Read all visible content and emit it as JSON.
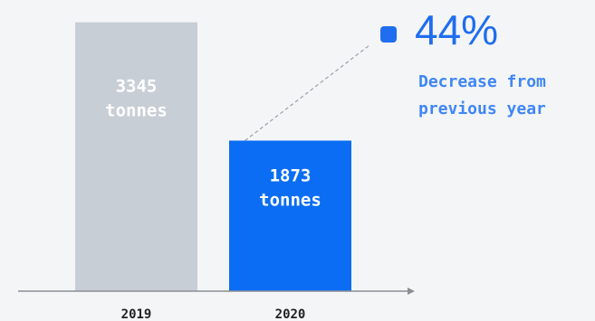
{
  "chart_data": {
    "type": "bar",
    "categories": [
      "2019",
      "2020"
    ],
    "values": [
      3345,
      1873
    ],
    "unit": "tonnes",
    "ylim": [
      0,
      3600
    ],
    "grid": false,
    "colors": {
      "2019_bar": "#c8ced6",
      "2020_bar": "#0a6df3",
      "accent": "#1f6df0"
    },
    "callout": {
      "value": "44%",
      "line1": "Decrease from",
      "line2": "previous year"
    }
  }
}
